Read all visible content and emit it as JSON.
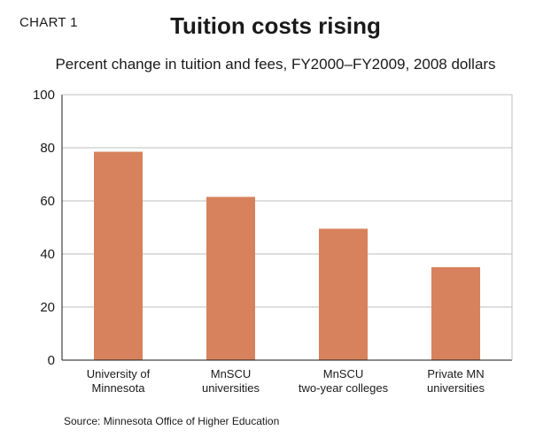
{
  "header": {
    "chart_number": "CHART 1",
    "title": "Tuition costs rising",
    "subtitle": "Percent change in tuition and fees, FY2000–FY2009, 2008 dollars"
  },
  "footer": {
    "source": "Source: Minnesota Office of Higher Education"
  },
  "colors": {
    "bar": "#d7825c",
    "axis": "#1a1a1a",
    "grid": "#bdbdbd"
  },
  "chart_data": {
    "type": "bar",
    "title": "Tuition costs rising",
    "subtitle": "Percent change in tuition and fees, FY2000–FY2009, 2008 dollars",
    "xlabel": "",
    "ylabel": "",
    "categories": [
      [
        "University of",
        "Minnesota"
      ],
      [
        "MnSCU",
        "universities"
      ],
      [
        "MnSCU",
        "two-year colleges"
      ],
      [
        "Private MN",
        "universities"
      ]
    ],
    "values": [
      78.5,
      61.5,
      49.5,
      35
    ],
    "ylim": [
      0,
      100
    ],
    "yticks": [
      0,
      20,
      40,
      60,
      80,
      100
    ],
    "grid": true
  }
}
